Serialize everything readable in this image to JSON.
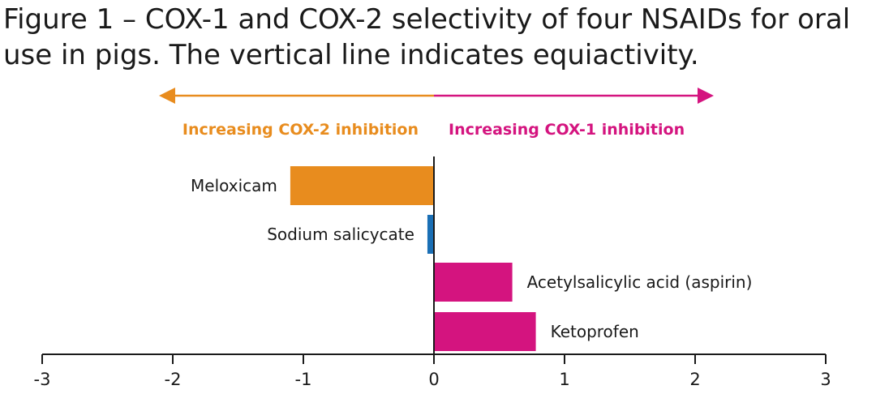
{
  "title_lines": [
    "Figure 1 – COX-1 and COX-2 selectivity of four NSAIDs for oral",
    "use in pigs. The vertical line indicates equiactivity."
  ],
  "colors": {
    "cox2": "#E88C1E",
    "cox1": "#D4147F",
    "neutral": "#1A6FB5",
    "axis": "#1a1a1a"
  },
  "direction_labels": {
    "left": "Increasing COX-2 inhibition",
    "right": "Increasing COX-1 inhibition"
  },
  "chart_data": {
    "type": "bar",
    "orientation": "horizontal",
    "categories": [
      "Meloxicam",
      "Sodium salicycate",
      "Acetylsalicylic acid (aspirin)",
      "Ketoprofen"
    ],
    "values": [
      -1.1,
      -0.05,
      0.6,
      0.78
    ],
    "bar_colors": [
      "#E88C1E",
      "#1A6FB5",
      "#D4147F",
      "#D4147F"
    ],
    "xlim": [
      -3,
      3
    ],
    "xticks": [
      -3,
      -2,
      -1,
      0,
      1,
      2,
      3
    ],
    "reference_line": 0,
    "grid": false
  }
}
